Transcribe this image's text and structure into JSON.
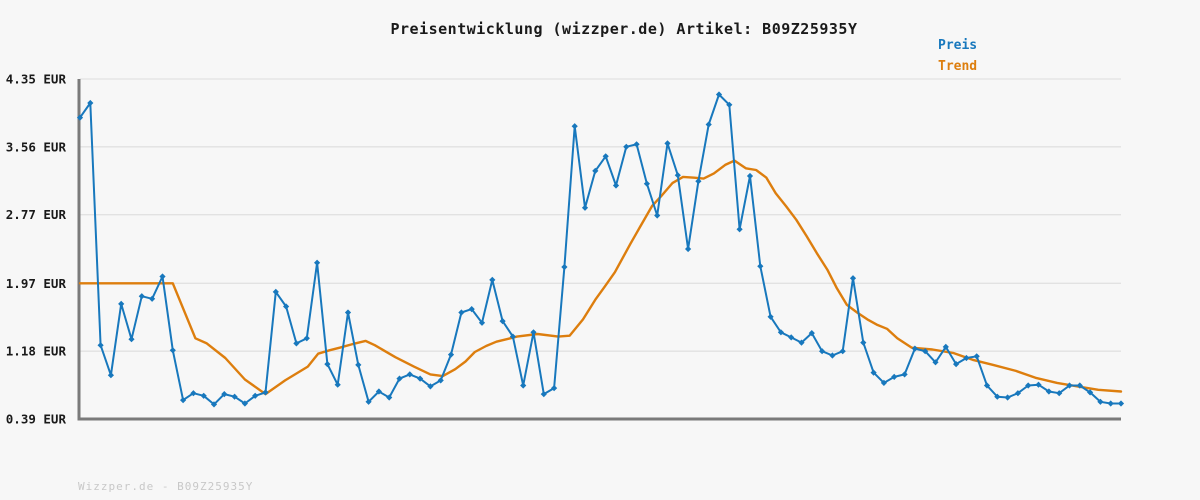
{
  "page": {
    "title": "Preisentwicklung (wizzper.de) Artikel: B09Z25935Y",
    "watermark": "Wizzper.de - B09Z25935Y",
    "background_color": "#f7f7f7"
  },
  "legend": {
    "items": [
      {
        "label": "Preis",
        "color": "#1878bd"
      },
      {
        "label": "Trend",
        "color": "#dd7e0e"
      }
    ]
  },
  "chart_data": {
    "type": "line",
    "title": "Preisentwicklung (wizzper.de) Artikel: B09Z25935Y",
    "xlabel": "",
    "ylabel": "EUR",
    "x_axis_labels": "none",
    "yticks": [
      "4.35 EUR",
      "3.56 EUR",
      "2.77 EUR",
      "1.97 EUR",
      "1.18 EUR",
      "0.39 EUR"
    ],
    "ylim": [
      0.39,
      4.35
    ],
    "grid": true,
    "grid_color": "#e2e2e2",
    "axis_color": "#7a7a7a",
    "legend_position": "top-right",
    "series": [
      {
        "name": "Preis",
        "color": "#1878bd",
        "marker": "diamond",
        "unit": "EUR",
        "values": [
          3.9,
          4.07,
          1.25,
          0.9,
          1.73,
          1.32,
          1.82,
          1.79,
          2.05,
          1.19,
          0.61,
          0.69,
          0.66,
          0.56,
          0.68,
          0.65,
          0.57,
          0.66,
          0.7,
          1.87,
          1.7,
          1.27,
          1.33,
          2.21,
          1.03,
          0.79,
          1.63,
          1.02,
          0.59,
          0.71,
          0.64,
          0.86,
          0.91,
          0.86,
          0.77,
          0.84,
          1.14,
          1.63,
          1.67,
          1.51,
          2.01,
          1.53,
          1.35,
          0.78,
          1.4,
          0.68,
          0.75,
          2.16,
          3.8,
          2.85,
          3.28,
          3.45,
          3.11,
          3.56,
          3.59,
          3.13,
          2.76,
          3.6,
          3.23,
          2.37,
          3.16,
          3.82,
          4.17,
          4.05,
          2.6,
          3.22,
          2.17,
          1.58,
          1.4,
          1.34,
          1.28,
          1.39,
          1.18,
          1.13,
          1.18,
          2.03,
          1.28,
          0.93,
          0.81,
          0.88,
          0.91,
          1.21,
          1.18,
          1.05,
          1.23,
          1.03,
          1.1,
          1.12,
          0.78,
          0.65,
          0.64,
          0.69,
          0.78,
          0.79,
          0.71,
          0.69,
          0.78,
          0.78,
          0.7,
          0.59,
          0.57,
          0.57
        ]
      },
      {
        "name": "Trend",
        "color": "#dd7e0e",
        "marker": "none",
        "unit": "EUR",
        "points": [
          [
            0,
            1.97
          ],
          [
            9,
            1.97
          ],
          [
            11.2,
            1.33
          ],
          [
            12.3,
            1.27
          ],
          [
            14.1,
            1.1
          ],
          [
            16,
            0.85
          ],
          [
            18,
            0.68
          ],
          [
            19.9,
            0.84
          ],
          [
            22.1,
            1.0
          ],
          [
            23.1,
            1.15
          ],
          [
            24.2,
            1.19
          ],
          [
            25.2,
            1.22
          ],
          [
            26.7,
            1.27
          ],
          [
            27.7,
            1.3
          ],
          [
            28.6,
            1.25
          ],
          [
            30.6,
            1.11
          ],
          [
            32.4,
            1.0
          ],
          [
            34,
            0.91
          ],
          [
            35.2,
            0.89
          ],
          [
            36.4,
            0.97
          ],
          [
            37.4,
            1.06
          ],
          [
            38.3,
            1.17
          ],
          [
            39.4,
            1.24
          ],
          [
            40.4,
            1.29
          ],
          [
            42.4,
            1.35
          ],
          [
            44.4,
            1.38
          ],
          [
            46.4,
            1.35
          ],
          [
            47.5,
            1.36
          ],
          [
            48.8,
            1.55
          ],
          [
            50,
            1.78
          ],
          [
            50.9,
            1.93
          ],
          [
            51.9,
            2.1
          ],
          [
            53.4,
            2.43
          ],
          [
            54.3,
            2.62
          ],
          [
            55.5,
            2.87
          ],
          [
            56.5,
            3.0
          ],
          [
            57.5,
            3.14
          ],
          [
            58.5,
            3.21
          ],
          [
            59.6,
            3.2
          ],
          [
            60.5,
            3.19
          ],
          [
            61.5,
            3.25
          ],
          [
            62.6,
            3.35
          ],
          [
            63.5,
            3.4
          ],
          [
            64.6,
            3.31
          ],
          [
            65.6,
            3.29
          ],
          [
            66.6,
            3.2
          ],
          [
            67.5,
            3.02
          ],
          [
            68.5,
            2.87
          ],
          [
            69.5,
            2.71
          ],
          [
            70.5,
            2.52
          ],
          [
            71.5,
            2.32
          ],
          [
            72.5,
            2.13
          ],
          [
            73.4,
            1.92
          ],
          [
            74.4,
            1.72
          ],
          [
            75.4,
            1.63
          ],
          [
            76.4,
            1.55
          ],
          [
            77.3,
            1.49
          ],
          [
            78.3,
            1.44
          ],
          [
            79.3,
            1.33
          ],
          [
            80.7,
            1.22
          ],
          [
            82.7,
            1.2
          ],
          [
            84.7,
            1.16
          ],
          [
            86.6,
            1.08
          ],
          [
            88.6,
            1.02
          ],
          [
            90.8,
            0.95
          ],
          [
            92.7,
            0.87
          ],
          [
            94.8,
            0.81
          ],
          [
            96.8,
            0.77
          ],
          [
            98.8,
            0.73
          ],
          [
            101,
            0.71
          ]
        ]
      }
    ]
  }
}
